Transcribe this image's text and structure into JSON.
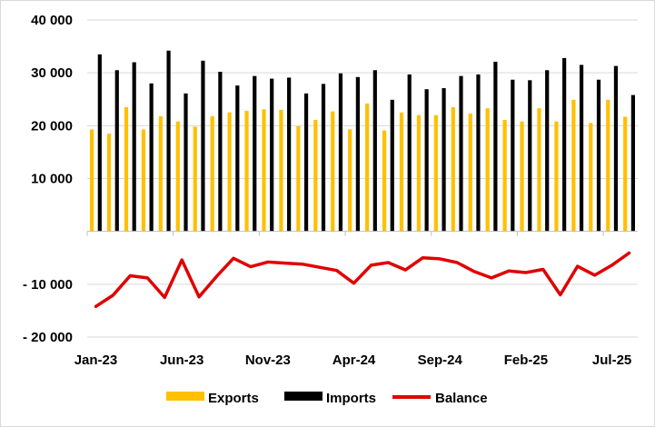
{
  "chart_data": {
    "type": "bar+line",
    "title": "",
    "xlabel": "",
    "ylabel": "",
    "ylim": [
      -20000,
      40000
    ],
    "yticks": [
      40000,
      30000,
      20000,
      10000,
      -10000,
      -20000
    ],
    "ytick_labels": [
      "40 000",
      "30 000",
      "20 000",
      "10 000",
      "- 10 000",
      "- 20 000"
    ],
    "categories": [
      "Jan-23",
      "Feb-23",
      "Mar-23",
      "Apr-23",
      "May-23",
      "Jun-23",
      "Jul-23",
      "Aug-23",
      "Sep-23",
      "Oct-23",
      "Nov-23",
      "Dec-23",
      "Jan-24",
      "Feb-24",
      "Mar-24",
      "Apr-24",
      "May-24",
      "Jun-24",
      "Jul-24",
      "Aug-24",
      "Sep-24",
      "Oct-24",
      "Nov-24",
      "Dec-24",
      "Jan-25",
      "Feb-25",
      "Mar-25",
      "Apr-25",
      "May-25",
      "Jun-25",
      "Jul-25",
      "Aug-25"
    ],
    "xtick_labels": [
      {
        "index": 0,
        "label": "Jan-23"
      },
      {
        "index": 5,
        "label": "Jun-23"
      },
      {
        "index": 10,
        "label": "Nov-23"
      },
      {
        "index": 15,
        "label": "Apr-24"
      },
      {
        "index": 20,
        "label": "Sep-24"
      },
      {
        "index": 25,
        "label": "Feb-25"
      },
      {
        "index": 30,
        "label": "Jul-25"
      }
    ],
    "series": [
      {
        "name": "Exports",
        "kind": "bar",
        "color": "#FFC000",
        "values": [
          19300,
          18500,
          23500,
          19300,
          21800,
          20800,
          19800,
          21800,
          22500,
          22800,
          23100,
          23000,
          19900,
          21100,
          22700,
          19300,
          24200,
          19100,
          22500,
          22000,
          22000,
          23500,
          22300,
          23300,
          21100,
          20800,
          23300,
          20800,
          24900,
          20500,
          24900,
          21700
        ]
      },
      {
        "name": "Imports",
        "kind": "bar",
        "color": "#000000",
        "values": [
          33500,
          30500,
          32000,
          28000,
          34200,
          26100,
          32300,
          30200,
          27600,
          29400,
          28900,
          29100,
          26100,
          27900,
          29900,
          29200,
          30500,
          24900,
          29700,
          26900,
          27100,
          29400,
          29700,
          32100,
          28700,
          28600,
          30500,
          32800,
          31500,
          28700,
          31300,
          25800
        ]
      },
      {
        "name": "Balance",
        "kind": "line",
        "color": "#E00000",
        "values": [
          -14200,
          -12100,
          -8400,
          -8800,
          -12500,
          -5400,
          -12400,
          -8600,
          -5100,
          -6700,
          -5800,
          -6000,
          -6200,
          -6800,
          -7400,
          -9800,
          -6400,
          -5900,
          -7300,
          -5000,
          -5200,
          -5900,
          -7600,
          -8800,
          -7500,
          -7800,
          -7200,
          -12000,
          -6600,
          -8300,
          -6400,
          -4100
        ]
      }
    ],
    "legend_position": "bottom"
  }
}
